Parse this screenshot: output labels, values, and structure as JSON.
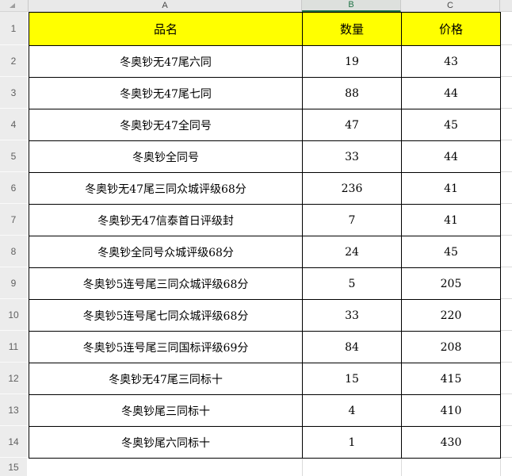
{
  "sheet": {
    "corner": {
      "icon": "select-all-triangle"
    },
    "columns": [
      {
        "label": "A",
        "selected": false
      },
      {
        "label": "B",
        "selected": true
      },
      {
        "label": "C",
        "selected": false
      }
    ],
    "row_numbers": [
      "1",
      "2",
      "3",
      "4",
      "5",
      "6",
      "7",
      "8",
      "9",
      "10",
      "11",
      "12",
      "13",
      "14",
      "15"
    ],
    "header_row": {
      "name": "品名",
      "qty": "数量",
      "price": "价格"
    },
    "rows": [
      {
        "name": "冬奥钞无47尾六同",
        "qty": "19",
        "price": "43"
      },
      {
        "name": "冬奥钞无47尾七同",
        "qty": "88",
        "price": "44"
      },
      {
        "name": "冬奥钞无47全同号",
        "qty": "47",
        "price": "45"
      },
      {
        "name": "冬奥钞全同号",
        "qty": "33",
        "price": "44"
      },
      {
        "name": "冬奥钞无47尾三同众城评级68分",
        "qty": "236",
        "price": "41"
      },
      {
        "name": "冬奥钞无47信泰首日评级封",
        "qty": "7",
        "price": "41"
      },
      {
        "name": "冬奥钞全同号众城评级68分",
        "qty": "24",
        "price": "45"
      },
      {
        "name": "冬奥钞5连号尾三同众城评级68分",
        "qty": "5",
        "price": "205"
      },
      {
        "name": "冬奥钞5连号尾七同众城评级68分",
        "qty": "33",
        "price": "220"
      },
      {
        "name": "冬奥钞5连号尾三同国标评级69分",
        "qty": "84",
        "price": "208"
      },
      {
        "name": "冬奥钞无47尾三同标十",
        "qty": "15",
        "price": "415"
      },
      {
        "name": "冬奥钞尾三同标十",
        "qty": "4",
        "price": "410"
      },
      {
        "name": "冬奥钞尾六同标十",
        "qty": "1",
        "price": "430"
      }
    ],
    "colors": {
      "header_fill": "#FFFF00",
      "selected_column_text": "#217346",
      "selected_column_underline": "#1E7145",
      "table_border": "#000000",
      "default_gridline": "#DCDCDC",
      "header_bar_bg": "#E9E9E9",
      "row_header_bg": "#ECECEC"
    }
  }
}
